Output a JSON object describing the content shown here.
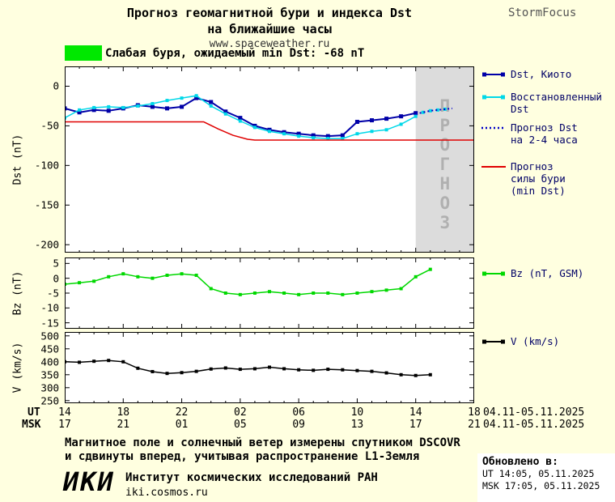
{
  "colors": {
    "page_bg": "#FFFFE0",
    "plot_bg": "#FFFFFF",
    "legend_text": "#000066"
  },
  "header": {
    "title_line1": "Прогноз геомагнитной бури и индекса Dst",
    "title_line2": "на ближайшие часы",
    "site": "www.spaceweather.ru",
    "brand": "StormFocus"
  },
  "alert": {
    "swatch_color": "#00E800",
    "text": "Слабая буря, ожидаемый min Dst: -68 nT"
  },
  "chart_data": [
    {
      "type": "line",
      "name": "dst-panel",
      "ylabel": "Dst (nT)",
      "ylim": [
        -210,
        25
      ],
      "xlim": [
        0,
        28
      ],
      "yticks": [
        {
          "v": 0,
          "label": "0"
        },
        {
          "v": -50,
          "label": "-50"
        },
        {
          "v": -100,
          "label": "-100"
        },
        {
          "v": -150,
          "label": "-150"
        },
        {
          "v": -200,
          "label": "-200"
        }
      ],
      "forecast_zone": {
        "x0": 24,
        "x1": 28,
        "label": "ПРОГНОЗ",
        "fill": "#DCDCDC",
        "label_color": "#B0B0B0"
      },
      "series": [
        {
          "name": "Dst, Киото",
          "color": "#0000A8",
          "width": 2,
          "marker": true,
          "msize": 5,
          "x": [
            0,
            1,
            2,
            3,
            4,
            5,
            6,
            7,
            8,
            9,
            10,
            11,
            12,
            13,
            14,
            15,
            16,
            17,
            18,
            19,
            20,
            21,
            22,
            23,
            24
          ],
          "y": [
            -28,
            -33,
            -30,
            -31,
            -28,
            -24,
            -26,
            -28,
            -26,
            -15,
            -20,
            -32,
            -40,
            -50,
            -55,
            -58,
            -60,
            -62,
            -63,
            -62,
            -45,
            -43,
            -41,
            -38,
            -34
          ]
        },
        {
          "name": "Восстановленный Dst",
          "color": "#00D8E8",
          "width": 1.5,
          "marker": true,
          "x": [
            0,
            1,
            2,
            3,
            4,
            5,
            6,
            7,
            8,
            9,
            10,
            11,
            12,
            13,
            14,
            15,
            16,
            17,
            18,
            19,
            20,
            21,
            22,
            23,
            24
          ],
          "y": [
            -40,
            -30,
            -27,
            -26,
            -27,
            -25,
            -22,
            -18,
            -15,
            -12,
            -25,
            -35,
            -44,
            -52,
            -57,
            -60,
            -63,
            -65,
            -66,
            -66,
            -60,
            -57,
            -55,
            -48,
            -38
          ]
        },
        {
          "name": "Восстановленный Dst (прогноз)",
          "color": "#00D8E8",
          "marker": true,
          "line": false,
          "x": [
            24.5,
            25,
            25.5,
            26
          ],
          "y": [
            -33,
            -31,
            -30,
            -29
          ]
        },
        {
          "name": "Прогноз Dst на 2-4 часа",
          "color": "#0000C8",
          "width": 2,
          "dotted": true,
          "x": [
            24,
            24.5,
            25,
            25.5,
            26,
            26.5
          ],
          "y": [
            -35,
            -33,
            -31,
            -30,
            -29,
            -28
          ]
        },
        {
          "name": "Прогноз силы бури (min Dst)",
          "color": "#E00000",
          "width": 1.5,
          "x": [
            0,
            9.5,
            10.5,
            11.5,
            12.5,
            13,
            28
          ],
          "y": [
            -45,
            -45,
            -54,
            -62,
            -67,
            -68,
            -68
          ]
        }
      ]
    },
    {
      "type": "line",
      "name": "bz-panel",
      "ylabel": "Bz (nT)",
      "ylim": [
        -17,
        7
      ],
      "xlim": [
        0,
        28
      ],
      "yticks": [
        {
          "v": 5,
          "label": "5"
        },
        {
          "v": 0,
          "label": "0"
        },
        {
          "v": -5,
          "label": "-5"
        },
        {
          "v": -10,
          "label": "-10"
        },
        {
          "v": -15,
          "label": "-15"
        }
      ],
      "series": [
        {
          "name": "Bz (nT, GSM)",
          "color": "#00D800",
          "width": 1.5,
          "marker": true,
          "x": [
            0,
            1,
            2,
            3,
            4,
            5,
            6,
            7,
            8,
            9,
            10,
            11,
            12,
            13,
            14,
            15,
            16,
            17,
            18,
            19,
            20,
            21,
            22,
            23,
            24,
            25
          ],
          "y": [
            -2,
            -1.5,
            -1,
            0.5,
            1.5,
            0.5,
            0,
            1,
            1.5,
            1,
            -3.5,
            -5,
            -5.5,
            -5,
            -4.5,
            -5,
            -5.5,
            -5,
            -5,
            -5.5,
            -5,
            -4.5,
            -4,
            -3.5,
            0.5,
            3
          ]
        }
      ]
    },
    {
      "type": "line",
      "name": "v-panel",
      "ylabel": "V (km/s)",
      "ylim": [
        240,
        515
      ],
      "xlim": [
        0,
        28
      ],
      "yticks": [
        {
          "v": 500,
          "label": "500"
        },
        {
          "v": 450,
          "label": "450"
        },
        {
          "v": 400,
          "label": "400"
        },
        {
          "v": 350,
          "label": "350"
        },
        {
          "v": 300,
          "label": "300"
        },
        {
          "v": 250,
          "label": "250"
        }
      ],
      "series": [
        {
          "name": "V (km/s)",
          "color": "#000000",
          "width": 1.5,
          "marker": true,
          "x": [
            0,
            1,
            2,
            3,
            4,
            5,
            6,
            7,
            8,
            9,
            10,
            11,
            12,
            13,
            14,
            15,
            16,
            17,
            18,
            19,
            20,
            21,
            22,
            23,
            24,
            25
          ],
          "y": [
            400,
            398,
            402,
            405,
            400,
            375,
            362,
            355,
            358,
            363,
            372,
            376,
            371,
            373,
            379,
            373,
            369,
            367,
            371,
            369,
            366,
            363,
            357,
            350,
            347,
            350
          ]
        }
      ]
    }
  ],
  "xaxis": {
    "tick_hours": [
      0,
      4,
      8,
      12,
      16,
      20,
      24,
      28
    ],
    "ut": {
      "label": "UT",
      "ticks": [
        "14",
        "18",
        "22",
        "02",
        "06",
        "10",
        "14",
        "18"
      ],
      "date": "04.11-05.11.2025"
    },
    "msk": {
      "label": "MSK",
      "ticks": [
        "17",
        "21",
        "01",
        "05",
        "09",
        "13",
        "17",
        "21"
      ],
      "date": "04.11-05.11.2025"
    }
  },
  "legend_main": [
    {
      "lines": [
        "Dst, Киото"
      ],
      "style": "marker-line",
      "color": "#0000A8"
    },
    {
      "lines": [
        "Восстановленный",
        "Dst"
      ],
      "style": "marker-line",
      "color": "#00D8E8"
    },
    {
      "lines": [
        "Прогноз Dst",
        "на 2-4 часа"
      ],
      "style": "dotted",
      "color": "#0000C8"
    },
    {
      "lines": [
        "Прогноз",
        "силы бури",
        "(min Dst)"
      ],
      "style": "line",
      "color": "#E00000"
    }
  ],
  "legend_bz": {
    "label": "Bz (nT, GSM)",
    "color": "#00D800"
  },
  "legend_v": {
    "label": "V (km/s)",
    "color": "#000000"
  },
  "footer": {
    "note_line1": "Магнитное поле и солнечный ветер измерены спутником DSCOVR",
    "note_line2": "и сдвинуты вперед, учитывая распространение L1-Земля",
    "logo": "ИКИ",
    "institute": "Институт космических исследований РАН",
    "institute_site": "iki.cosmos.ru",
    "updated_label": "Обновлено в:",
    "updated_ut": "UT  14:05, 05.11.2025",
    "updated_msk": "MSK 17:05, 05.11.2025"
  }
}
